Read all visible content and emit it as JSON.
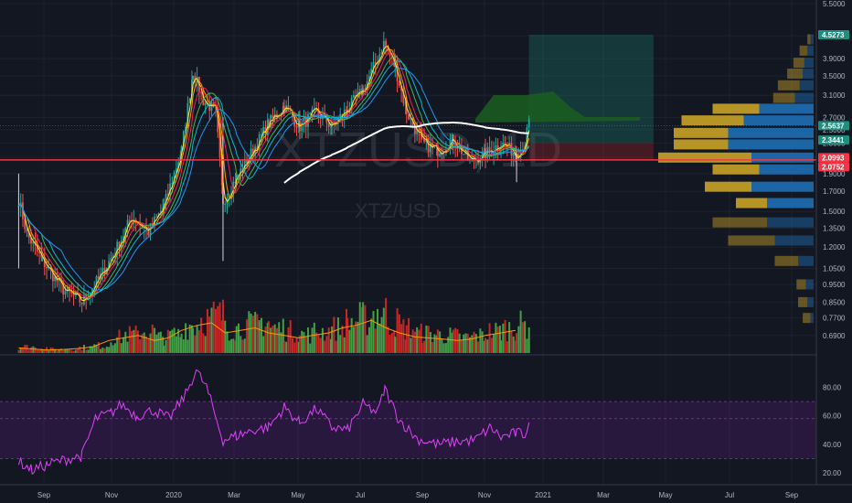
{
  "symbol": {
    "watermark_big": "XTZUSD, 1D",
    "watermark_small": "XTZ/USD"
  },
  "colors": {
    "background": "#131722",
    "up": "#26a69a",
    "down": "#ef5350",
    "volume_up": "#43a047",
    "volume_down": "#c62828",
    "rsi_line": "#e040fb",
    "rsi_band": "#7b1fa2",
    "grid": "#1e222d",
    "support": "#f23645",
    "vp_buy": "#c9a227",
    "vp_sell": "#1e6fb5"
  },
  "chart_data": [
    {
      "type": "candlestick",
      "title": "",
      "x_axis": {
        "tick_labels": [
          "Sep",
          "Nov",
          "2020",
          "Mar",
          "May",
          "Jul",
          "Sep",
          "Nov",
          "2021",
          "Mar",
          "May",
          "Jul",
          "Sep"
        ]
      },
      "y_axis": {
        "scale": "log",
        "tick_labels": [
          "5.5000",
          "4.5000",
          "3.9000",
          "3.5000",
          "3.1000",
          "2.7000",
          "2.5000",
          "2.3000",
          "2.1000",
          "1.9000",
          "1.7000",
          "1.5000",
          "1.3500",
          "1.2000",
          "1.0500",
          "0.9500",
          "0.8500",
          "0.7700",
          "0.6900"
        ]
      },
      "price_path": [
        [
          "2019-08-28",
          1.62
        ],
        [
          "2019-09-05",
          1.3
        ],
        [
          "2019-09-20",
          1.1
        ],
        [
          "2019-10-10",
          0.92
        ],
        [
          "2019-10-28",
          0.85
        ],
        [
          "2019-11-15",
          1.0
        ],
        [
          "2019-12-01",
          1.2
        ],
        [
          "2019-12-15",
          1.45
        ],
        [
          "2019-12-31",
          1.32
        ],
        [
          "2020-01-15",
          1.55
        ],
        [
          "2020-02-01",
          2.2
        ],
        [
          "2020-02-12",
          3.6
        ],
        [
          "2020-02-22",
          3.0
        ],
        [
          "2020-03-05",
          2.8
        ],
        [
          "2020-03-12",
          1.6
        ],
        [
          "2020-03-25",
          1.85
        ],
        [
          "2020-04-10",
          2.2
        ],
        [
          "2020-04-25",
          2.6
        ],
        [
          "2020-05-10",
          2.9
        ],
        [
          "2020-05-25",
          2.55
        ],
        [
          "2020-06-10",
          2.8
        ],
        [
          "2020-06-25",
          2.55
        ],
        [
          "2020-07-10",
          2.85
        ],
        [
          "2020-07-25",
          3.2
        ],
        [
          "2020-08-08",
          3.9
        ],
        [
          "2020-08-14",
          4.3
        ],
        [
          "2020-08-25",
          3.7
        ],
        [
          "2020-09-05",
          2.8
        ],
        [
          "2020-09-20",
          2.3
        ],
        [
          "2020-10-05",
          2.2
        ],
        [
          "2020-10-20",
          2.35
        ],
        [
          "2020-11-05",
          2.05
        ],
        [
          "2020-11-20",
          2.15
        ],
        [
          "2020-12-05",
          2.3
        ],
        [
          "2020-12-20",
          2.15
        ],
        [
          "2020-12-28",
          2.3
        ],
        [
          "2021-01-02",
          2.7
        ]
      ],
      "price_tags": [
        {
          "value": "4.5273",
          "price": 4.5273,
          "color": "#1e8e7e"
        },
        {
          "value": "2.5637",
          "price": 2.5637,
          "color": "#1e8e7e"
        },
        {
          "value": "2.3441",
          "price": 2.3441,
          "color": "#1e8e7e"
        },
        {
          "value": "2.0993",
          "price": 2.0993,
          "color": "#f23645"
        },
        {
          "value": "2.0752",
          "price": 2.0752,
          "color": "#f23645"
        }
      ],
      "support_price": 2.07,
      "target_zone": {
        "from_date": "2021-01-01",
        "to_date": "2021-05-01",
        "entry_price": 2.3,
        "target_price": 4.5273,
        "stop_price": 2.07
      },
      "volume_profile": [
        {
          "price": 4.4,
          "buy": 0.02,
          "sell": 0.02
        },
        {
          "price": 4.1,
          "buy": 0.05,
          "sell": 0.04
        },
        {
          "price": 3.8,
          "buy": 0.07,
          "sell": 0.06
        },
        {
          "price": 3.55,
          "buy": 0.1,
          "sell": 0.07
        },
        {
          "price": 3.3,
          "buy": 0.14,
          "sell": 0.09
        },
        {
          "price": 3.05,
          "buy": 0.14,
          "sell": 0.12
        },
        {
          "price": 2.85,
          "buy": 0.3,
          "sell": 0.35
        },
        {
          "price": 2.65,
          "buy": 0.4,
          "sell": 0.45
        },
        {
          "price": 2.45,
          "buy": 0.35,
          "sell": 0.55
        },
        {
          "price": 2.28,
          "buy": 0.35,
          "sell": 0.55
        },
        {
          "price": 2.1,
          "buy": 0.6,
          "sell": 0.4
        },
        {
          "price": 1.95,
          "buy": 0.3,
          "sell": 0.35
        },
        {
          "price": 1.75,
          "buy": 0.3,
          "sell": 0.4
        },
        {
          "price": 1.58,
          "buy": 0.2,
          "sell": 0.3
        },
        {
          "price": 1.4,
          "buy": 0.35,
          "sell": 0.3
        },
        {
          "price": 1.25,
          "buy": 0.3,
          "sell": 0.25
        },
        {
          "price": 1.1,
          "buy": 0.15,
          "sell": 0.1
        },
        {
          "price": 0.95,
          "buy": 0.06,
          "sell": 0.05
        },
        {
          "price": 0.85,
          "buy": 0.06,
          "sell": 0.04
        },
        {
          "price": 0.77,
          "buy": 0.05,
          "sell": 0.02
        }
      ]
    },
    {
      "type": "bar",
      "title": "",
      "note": "volume with moving average",
      "levels": [
        0.1,
        0.08,
        0.06,
        0.07,
        0.09,
        0.12,
        0.25,
        0.3,
        0.35,
        0.25,
        0.3,
        0.45,
        0.55,
        0.6,
        0.4,
        0.45,
        0.5,
        0.4,
        0.35,
        0.3,
        0.35,
        0.4,
        0.5,
        0.55,
        0.65,
        0.5,
        0.4,
        0.32,
        0.3,
        0.28,
        0.25,
        0.28,
        0.35,
        0.4,
        0.45
      ]
    },
    {
      "type": "line",
      "title": "",
      "note": "RSI oscillator",
      "y_axis": {
        "tick_labels": [
          "80.00",
          "60.00",
          "40.00",
          "20.00"
        ],
        "range": [
          15,
          95
        ]
      },
      "bands": {
        "upper": 70,
        "middle": 58,
        "lower": 30
      },
      "rsi_path": [
        [
          "2019-08-28",
          28
        ],
        [
          "2019-09-10",
          22
        ],
        [
          "2019-09-25",
          26
        ],
        [
          "2019-10-15",
          30
        ],
        [
          "2019-10-28",
          32
        ],
        [
          "2019-11-10",
          58
        ],
        [
          "2019-11-25",
          62
        ],
        [
          "2019-12-05",
          68
        ],
        [
          "2019-12-20",
          60
        ],
        [
          "2020-01-05",
          64
        ],
        [
          "2020-01-20",
          58
        ],
        [
          "2020-02-05",
          75
        ],
        [
          "2020-02-15",
          92
        ],
        [
          "2020-02-25",
          80
        ],
        [
          "2020-03-12",
          43
        ],
        [
          "2020-03-25",
          46
        ],
        [
          "2020-04-10",
          50
        ],
        [
          "2020-04-25",
          52
        ],
        [
          "2020-05-10",
          66
        ],
        [
          "2020-05-25",
          55
        ],
        [
          "2020-06-10",
          65
        ],
        [
          "2020-06-25",
          52
        ],
        [
          "2020-07-10",
          50
        ],
        [
          "2020-07-25",
          68
        ],
        [
          "2020-08-08",
          62
        ],
        [
          "2020-08-15",
          79
        ],
        [
          "2020-08-28",
          58
        ],
        [
          "2020-09-15",
          44
        ],
        [
          "2020-10-05",
          40
        ],
        [
          "2020-10-25",
          42
        ],
        [
          "2020-11-10",
          43
        ],
        [
          "2020-11-25",
          52
        ],
        [
          "2020-12-05",
          45
        ],
        [
          "2020-12-20",
          48
        ],
        [
          "2020-12-28",
          47
        ],
        [
          "2021-01-02",
          59
        ]
      ]
    }
  ]
}
